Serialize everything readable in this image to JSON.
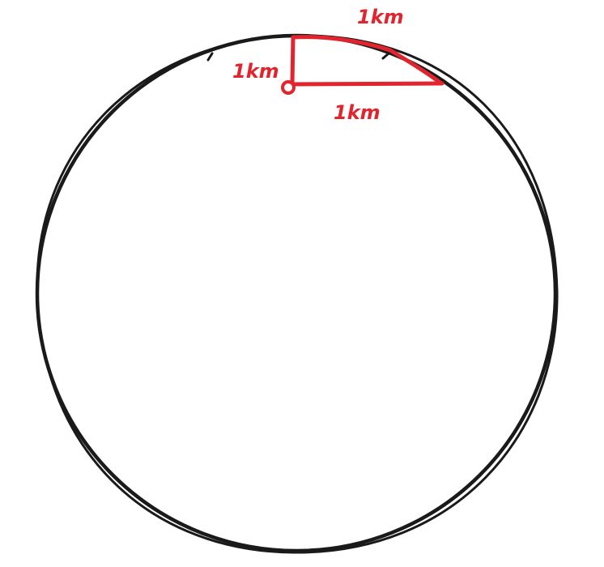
{
  "diagram": {
    "labels": {
      "top_arc": "1km",
      "vertical_leg": "1km",
      "horizontal_leg": "1km"
    },
    "colors": {
      "circle": "#1a1a1a",
      "path": "#e0252e",
      "background": "#ffffff"
    }
  }
}
